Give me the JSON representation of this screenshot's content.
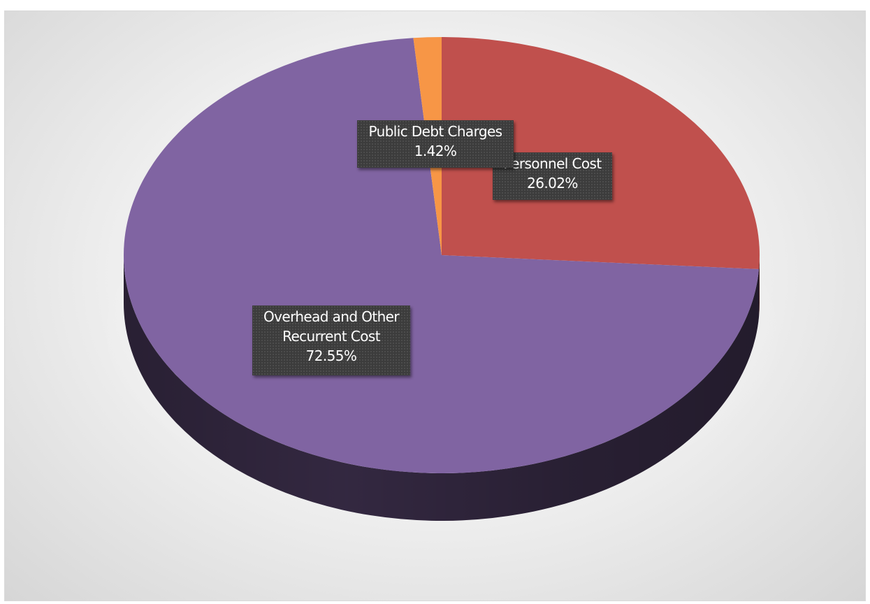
{
  "chart_data": {
    "type": "pie",
    "style": "3d",
    "title": "",
    "legend": "none",
    "slices": [
      {
        "label": "Personnel Cost",
        "value": 26.02,
        "value_label": "26.02%",
        "color": "#c0504d"
      },
      {
        "label": "Overhead and Other Recurrent Cost",
        "label_lines": [
          "Overhead and Other",
          "Recurrent Cost"
        ],
        "value": 72.55,
        "value_label": "72.55%",
        "color": "#8064a2"
      },
      {
        "label": "Public Debt Charges",
        "value": 1.42,
        "value_label": "1.42%",
        "color": "#f79646"
      }
    ]
  }
}
